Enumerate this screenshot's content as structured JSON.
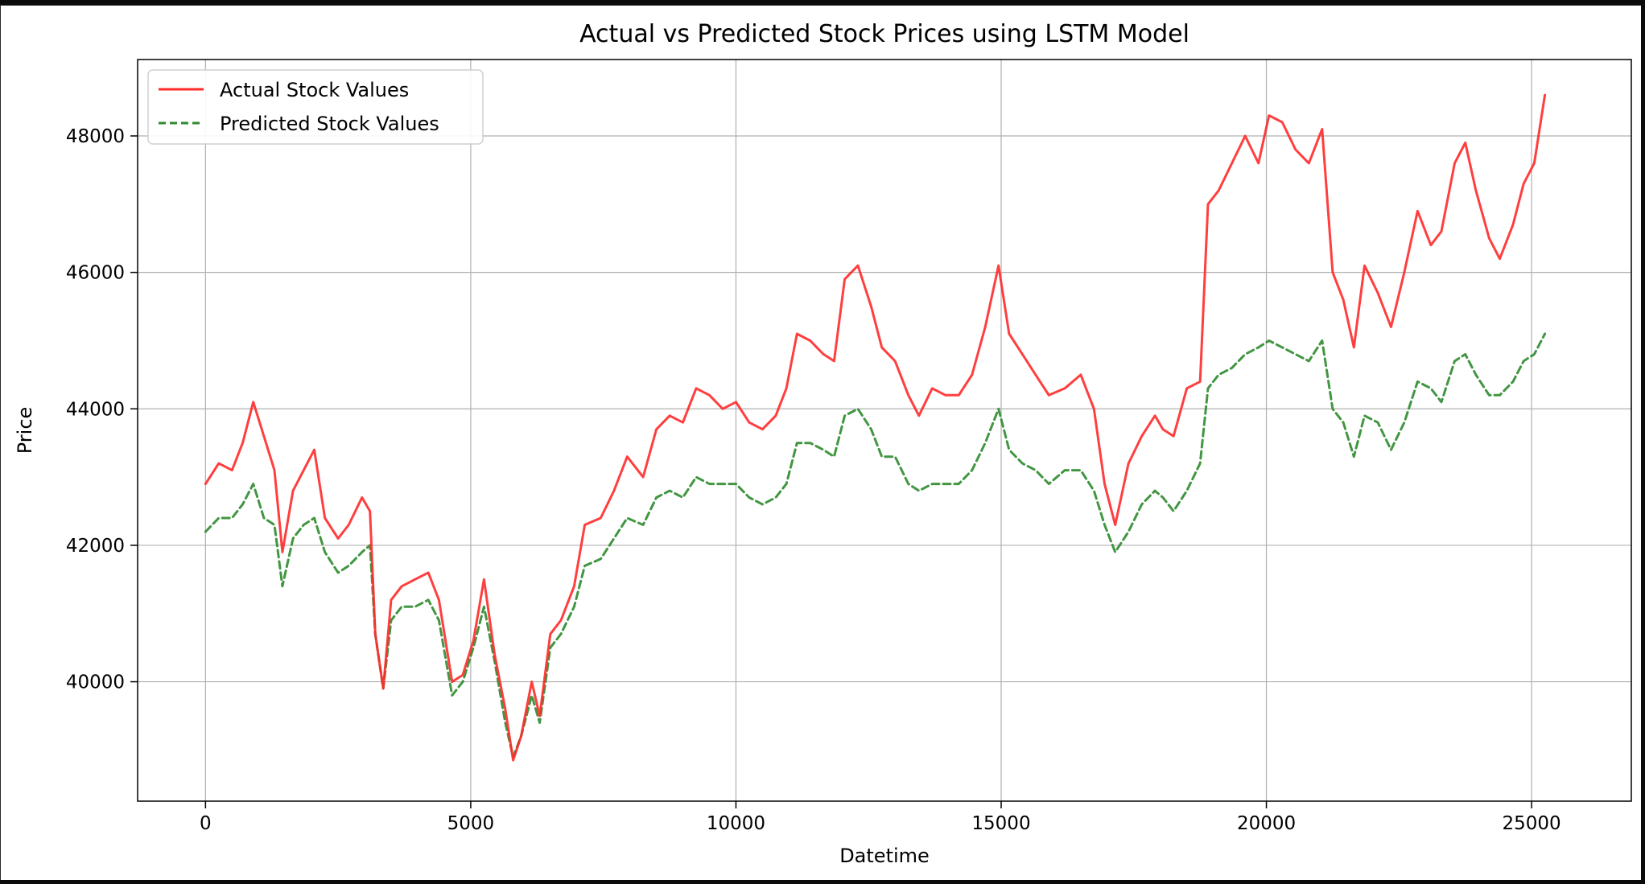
{
  "chart_data": {
    "type": "line",
    "title": "Actual vs Predicted Stock Prices using LSTM Model",
    "xlabel": "Datetime",
    "ylabel": "Price",
    "xlim": [
      -1280,
      26880
    ],
    "ylim": [
      38250,
      49120
    ],
    "xticks": [
      {
        "value": 0,
        "label": "0"
      },
      {
        "value": 5000,
        "label": "5000"
      },
      {
        "value": 10000,
        "label": "10000"
      },
      {
        "value": 15000,
        "label": "15000"
      },
      {
        "value": 20000,
        "label": "20000"
      },
      {
        "value": 25000,
        "label": "25000"
      }
    ],
    "yticks": [
      {
        "value": 40000,
        "label": "40000"
      },
      {
        "value": 42000,
        "label": "42000"
      },
      {
        "value": 44000,
        "label": "44000"
      },
      {
        "value": 46000,
        "label": "46000"
      },
      {
        "value": 48000,
        "label": "48000"
      }
    ],
    "grid": true,
    "legend_position": "top-left",
    "series": [
      {
        "name": "Actual Stock Values",
        "color": "#ff2a2a",
        "style": "solid",
        "points": [
          [
            0,
            42900
          ],
          [
            250,
            43200
          ],
          [
            500,
            43100
          ],
          [
            700,
            43500
          ],
          [
            900,
            44100
          ],
          [
            1100,
            43600
          ],
          [
            1300,
            43100
          ],
          [
            1450,
            41900
          ],
          [
            1650,
            42800
          ],
          [
            1850,
            43100
          ],
          [
            2050,
            43400
          ],
          [
            2250,
            42400
          ],
          [
            2500,
            42100
          ],
          [
            2700,
            42300
          ],
          [
            2950,
            42700
          ],
          [
            3100,
            42500
          ],
          [
            3200,
            40700
          ],
          [
            3350,
            39900
          ],
          [
            3500,
            41200
          ],
          [
            3700,
            41400
          ],
          [
            3950,
            41500
          ],
          [
            4200,
            41600
          ],
          [
            4400,
            41200
          ],
          [
            4650,
            40000
          ],
          [
            4850,
            40100
          ],
          [
            5050,
            40600
          ],
          [
            5250,
            41500
          ],
          [
            5450,
            40400
          ],
          [
            5650,
            39600
          ],
          [
            5800,
            38850
          ],
          [
            5950,
            39200
          ],
          [
            6150,
            40000
          ],
          [
            6300,
            39500
          ],
          [
            6500,
            40700
          ],
          [
            6700,
            40900
          ],
          [
            6950,
            41400
          ],
          [
            7150,
            42300
          ],
          [
            7450,
            42400
          ],
          [
            7700,
            42800
          ],
          [
            7950,
            43300
          ],
          [
            8250,
            43000
          ],
          [
            8500,
            43700
          ],
          [
            8750,
            43900
          ],
          [
            9000,
            43800
          ],
          [
            9250,
            44300
          ],
          [
            9500,
            44200
          ],
          [
            9750,
            44000
          ],
          [
            10000,
            44100
          ],
          [
            10250,
            43800
          ],
          [
            10500,
            43700
          ],
          [
            10750,
            43900
          ],
          [
            10950,
            44300
          ],
          [
            11150,
            45100
          ],
          [
            11400,
            45000
          ],
          [
            11650,
            44800
          ],
          [
            11850,
            44700
          ],
          [
            12050,
            45900
          ],
          [
            12300,
            46100
          ],
          [
            12550,
            45500
          ],
          [
            12750,
            44900
          ],
          [
            13000,
            44700
          ],
          [
            13250,
            44200
          ],
          [
            13450,
            43900
          ],
          [
            13700,
            44300
          ],
          [
            13950,
            44200
          ],
          [
            14200,
            44200
          ],
          [
            14450,
            44500
          ],
          [
            14700,
            45200
          ],
          [
            14950,
            46100
          ],
          [
            15150,
            45100
          ],
          [
            15400,
            44800
          ],
          [
            15650,
            44500
          ],
          [
            15900,
            44200
          ],
          [
            16200,
            44300
          ],
          [
            16500,
            44500
          ],
          [
            16750,
            44000
          ],
          [
            16950,
            42900
          ],
          [
            17150,
            42300
          ],
          [
            17400,
            43200
          ],
          [
            17650,
            43600
          ],
          [
            17900,
            43900
          ],
          [
            18050,
            43700
          ],
          [
            18250,
            43600
          ],
          [
            18500,
            44300
          ],
          [
            18750,
            44400
          ],
          [
            18900,
            47000
          ],
          [
            19100,
            47200
          ],
          [
            19350,
            47600
          ],
          [
            19600,
            48000
          ],
          [
            19850,
            47600
          ],
          [
            20050,
            48300
          ],
          [
            20300,
            48200
          ],
          [
            20550,
            47800
          ],
          [
            20800,
            47600
          ],
          [
            21050,
            48100
          ],
          [
            21250,
            46000
          ],
          [
            21450,
            45600
          ],
          [
            21650,
            44900
          ],
          [
            21850,
            46100
          ],
          [
            22100,
            45700
          ],
          [
            22350,
            45200
          ],
          [
            22600,
            46000
          ],
          [
            22850,
            46900
          ],
          [
            23100,
            46400
          ],
          [
            23300,
            46600
          ],
          [
            23550,
            47600
          ],
          [
            23750,
            47900
          ],
          [
            23950,
            47200
          ],
          [
            24200,
            46500
          ],
          [
            24400,
            46200
          ],
          [
            24650,
            46700
          ],
          [
            24850,
            47300
          ],
          [
            25050,
            47600
          ],
          [
            25250,
            48600
          ]
        ]
      },
      {
        "name": "Predicted Stock Values",
        "color": "#2e8b2e",
        "style": "dashed",
        "points": [
          [
            0,
            42200
          ],
          [
            250,
            42400
          ],
          [
            500,
            42400
          ],
          [
            700,
            42600
          ],
          [
            900,
            42900
          ],
          [
            1100,
            42400
          ],
          [
            1300,
            42300
          ],
          [
            1450,
            41400
          ],
          [
            1650,
            42100
          ],
          [
            1850,
            42300
          ],
          [
            2050,
            42400
          ],
          [
            2250,
            41900
          ],
          [
            2500,
            41600
          ],
          [
            2700,
            41700
          ],
          [
            2950,
            41900
          ],
          [
            3100,
            42000
          ],
          [
            3200,
            40700
          ],
          [
            3350,
            39900
          ],
          [
            3500,
            40900
          ],
          [
            3700,
            41100
          ],
          [
            3950,
            41100
          ],
          [
            4200,
            41200
          ],
          [
            4400,
            40900
          ],
          [
            4650,
            39800
          ],
          [
            4850,
            40000
          ],
          [
            5050,
            40500
          ],
          [
            5250,
            41100
          ],
          [
            5450,
            40300
          ],
          [
            5650,
            39400
          ],
          [
            5800,
            38900
          ],
          [
            5950,
            39200
          ],
          [
            6150,
            39800
          ],
          [
            6300,
            39400
          ],
          [
            6500,
            40500
          ],
          [
            6700,
            40700
          ],
          [
            6950,
            41100
          ],
          [
            7150,
            41700
          ],
          [
            7450,
            41800
          ],
          [
            7700,
            42100
          ],
          [
            7950,
            42400
          ],
          [
            8250,
            42300
          ],
          [
            8500,
            42700
          ],
          [
            8750,
            42800
          ],
          [
            9000,
            42700
          ],
          [
            9250,
            43000
          ],
          [
            9500,
            42900
          ],
          [
            9750,
            42900
          ],
          [
            10000,
            42900
          ],
          [
            10250,
            42700
          ],
          [
            10500,
            42600
          ],
          [
            10750,
            42700
          ],
          [
            10950,
            42900
          ],
          [
            11150,
            43500
          ],
          [
            11400,
            43500
          ],
          [
            11650,
            43400
          ],
          [
            11850,
            43300
          ],
          [
            12050,
            43900
          ],
          [
            12300,
            44000
          ],
          [
            12550,
            43700
          ],
          [
            12750,
            43300
          ],
          [
            13000,
            43300
          ],
          [
            13250,
            42900
          ],
          [
            13450,
            42800
          ],
          [
            13700,
            42900
          ],
          [
            13950,
            42900
          ],
          [
            14200,
            42900
          ],
          [
            14450,
            43100
          ],
          [
            14700,
            43500
          ],
          [
            14950,
            44000
          ],
          [
            15150,
            43400
          ],
          [
            15400,
            43200
          ],
          [
            15650,
            43100
          ],
          [
            15900,
            42900
          ],
          [
            16200,
            43100
          ],
          [
            16500,
            43100
          ],
          [
            16750,
            42800
          ],
          [
            16950,
            42300
          ],
          [
            17150,
            41900
          ],
          [
            17400,
            42200
          ],
          [
            17650,
            42600
          ],
          [
            17900,
            42800
          ],
          [
            18050,
            42700
          ],
          [
            18250,
            42500
          ],
          [
            18500,
            42800
          ],
          [
            18750,
            43200
          ],
          [
            18900,
            44300
          ],
          [
            19100,
            44500
          ],
          [
            19350,
            44600
          ],
          [
            19600,
            44800
          ],
          [
            19850,
            44900
          ],
          [
            20050,
            45000
          ],
          [
            20300,
            44900
          ],
          [
            20550,
            44800
          ],
          [
            20800,
            44700
          ],
          [
            21050,
            45000
          ],
          [
            21250,
            44000
          ],
          [
            21450,
            43800
          ],
          [
            21650,
            43300
          ],
          [
            21850,
            43900
          ],
          [
            22100,
            43800
          ],
          [
            22350,
            43400
          ],
          [
            22600,
            43800
          ],
          [
            22850,
            44400
          ],
          [
            23100,
            44300
          ],
          [
            23300,
            44100
          ],
          [
            23550,
            44700
          ],
          [
            23750,
            44800
          ],
          [
            23950,
            44500
          ],
          [
            24200,
            44200
          ],
          [
            24400,
            44200
          ],
          [
            24650,
            44400
          ],
          [
            24850,
            44700
          ],
          [
            25050,
            44800
          ],
          [
            25250,
            45100
          ]
        ]
      }
    ]
  }
}
